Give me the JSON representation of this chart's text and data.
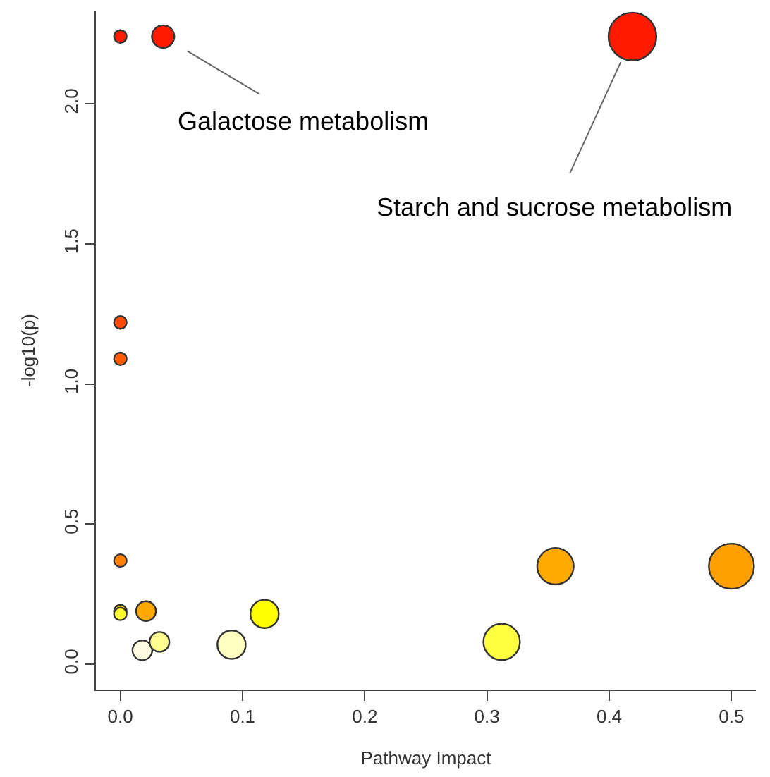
{
  "chart_data": {
    "type": "bubble",
    "xlabel": "Pathway Impact",
    "ylabel": "-log10(p)",
    "x": [
      0,
      0.035,
      0.419,
      0,
      0,
      0,
      0,
      0,
      0.021,
      0.118,
      0.018,
      0.032,
      0.091,
      0.312,
      0.356,
      0.5
    ],
    "values": [
      2.24,
      2.24,
      2.24,
      1.22,
      1.09,
      0.37,
      0.19,
      0.18,
      0.19,
      0.18,
      0.05,
      0.08,
      0.07,
      0.08,
      0.35,
      0.35
    ],
    "sizes": [
      0.07,
      0.22,
      1,
      0.07,
      0.07,
      0.07,
      0.07,
      0.07,
      0.17,
      0.35,
      0.17,
      0.17,
      0.35,
      0.58,
      0.58,
      0.89
    ],
    "colors": [
      "#ff1a00",
      "#ff1a00",
      "#ff1a00",
      "#ff4800",
      "#ff5c00",
      "#ff8000",
      "#ffd000",
      "#ffff30",
      "#ffa800",
      "#ffff00",
      "#fffbe0",
      "#ffff90",
      "#ffffc0",
      "#ffff40",
      "#ffaa00",
      "#ffa000"
    ],
    "xlim": [
      -0.02,
      0.52
    ],
    "ylim": [
      -0.09,
      2.33
    ],
    "xticks": [
      {
        "value": 0,
        "label": "0.0"
      },
      0.1,
      0.2,
      0.3,
      0.4,
      0.5
    ],
    "yticks": [
      {
        "value": 0,
        "label": "0.0"
      },
      0.5,
      {
        "value": 1,
        "label": "1.0"
      },
      1.5,
      {
        "value": 2,
        "label": "2.0"
      }
    ],
    "annotations": [
      {
        "text": "Galactose metabolism",
        "x": 0.035,
        "y": 2.24
      },
      {
        "text": "Starch and sucrose metabolism",
        "x": 0.419,
        "y": 2.24
      }
    ],
    "legend": false
  }
}
